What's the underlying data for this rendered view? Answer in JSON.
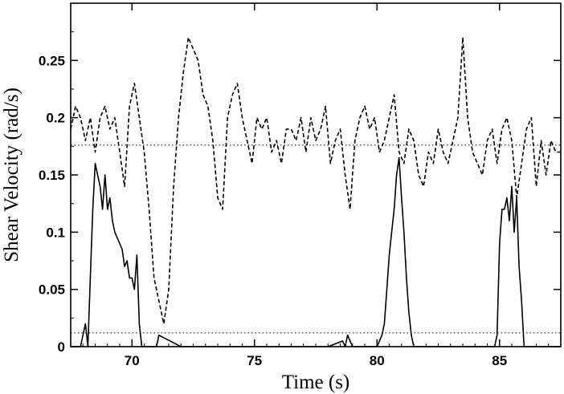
{
  "chart_data": {
    "type": "line",
    "title": "",
    "xlabel": "Time (s)",
    "ylabel": "Shear Velocity (rad/s)",
    "xlim": [
      67.5,
      87.5
    ],
    "ylim": [
      0,
      0.3
    ],
    "x_ticks": [
      70,
      75,
      80,
      85
    ],
    "x_tick_labels": [
      "70",
      "75",
      "80",
      "85"
    ],
    "y_ticks": [
      0,
      0.05,
      0.1,
      0.15,
      0.2,
      0.25
    ],
    "y_tick_labels": [
      "0",
      "0.05",
      "0.1",
      "0.15",
      "0.2",
      "0.25"
    ],
    "grid": false,
    "legend": "none",
    "reference_lines": [
      {
        "style": "dotted",
        "y": 0.176
      },
      {
        "style": "dotted",
        "y": 0.012
      }
    ],
    "series": [
      {
        "style": "dashed",
        "color": "#000000",
        "x": [
          67.5,
          67.7,
          67.9,
          68.1,
          68.3,
          68.5,
          68.7,
          68.9,
          69.1,
          69.3,
          69.5,
          69.7,
          69.9,
          70.1,
          70.3,
          70.5,
          70.7,
          70.9,
          71.1,
          71.3,
          71.5,
          71.7,
          71.9,
          72.1,
          72.3,
          72.5,
          72.7,
          72.9,
          73.1,
          73.3,
          73.5,
          73.7,
          73.9,
          74.1,
          74.3,
          74.5,
          74.7,
          74.9,
          75.1,
          75.3,
          75.5,
          75.7,
          75.9,
          76.1,
          76.3,
          76.5,
          76.7,
          76.9,
          77.1,
          77.3,
          77.5,
          77.7,
          77.9,
          78.1,
          78.3,
          78.5,
          78.7,
          78.9,
          79.1,
          79.3,
          79.5,
          79.7,
          79.9,
          80.1,
          80.3,
          80.5,
          80.7,
          80.9,
          81.1,
          81.3,
          81.5,
          81.7,
          81.9,
          82.1,
          82.3,
          82.5,
          82.7,
          82.9,
          83.1,
          83.3,
          83.5,
          83.7,
          83.9,
          84.1,
          84.3,
          84.5,
          84.7,
          84.9,
          85.1,
          85.3,
          85.5,
          85.7,
          85.9,
          86.1,
          86.3,
          86.5,
          86.7,
          86.9,
          87.1,
          87.3,
          87.5
        ],
        "y": [
          0.19,
          0.21,
          0.2,
          0.18,
          0.2,
          0.17,
          0.2,
          0.21,
          0.19,
          0.2,
          0.17,
          0.14,
          0.21,
          0.23,
          0.2,
          0.17,
          0.12,
          0.06,
          0.04,
          0.02,
          0.05,
          0.14,
          0.2,
          0.24,
          0.27,
          0.26,
          0.25,
          0.22,
          0.21,
          0.18,
          0.13,
          0.12,
          0.2,
          0.22,
          0.23,
          0.2,
          0.18,
          0.16,
          0.2,
          0.19,
          0.2,
          0.17,
          0.18,
          0.16,
          0.19,
          0.19,
          0.18,
          0.2,
          0.17,
          0.2,
          0.18,
          0.19,
          0.21,
          0.16,
          0.18,
          0.19,
          0.15,
          0.12,
          0.18,
          0.2,
          0.21,
          0.19,
          0.2,
          0.17,
          0.18,
          0.2,
          0.22,
          0.17,
          0.16,
          0.19,
          0.18,
          0.15,
          0.14,
          0.17,
          0.16,
          0.19,
          0.17,
          0.16,
          0.18,
          0.2,
          0.27,
          0.2,
          0.17,
          0.16,
          0.15,
          0.18,
          0.19,
          0.16,
          0.19,
          0.2,
          0.18,
          0.13,
          0.16,
          0.19,
          0.2,
          0.14,
          0.18,
          0.15,
          0.18,
          0.17,
          0.17
        ]
      },
      {
        "style": "solid",
        "color": "#000000",
        "x": [
          67.5,
          67.9,
          68.1,
          68.2,
          68.3,
          68.4,
          68.5,
          68.6,
          68.7,
          68.8,
          68.9,
          69.0,
          69.1,
          69.2,
          69.3,
          69.4,
          69.5,
          69.6,
          69.7,
          69.8,
          69.9,
          70.0,
          70.1,
          70.2,
          70.3,
          70.4,
          71.0,
          71.1,
          72.0,
          75.0,
          78.0,
          78.6,
          78.7,
          78.8,
          79.0,
          80.0,
          80.2,
          80.3,
          80.4,
          80.5,
          80.6,
          80.7,
          80.8,
          80.9,
          81.0,
          81.1,
          81.2,
          81.3,
          81.4,
          81.5,
          81.7,
          84.5,
          84.8,
          84.9,
          85.0,
          85.1,
          85.2,
          85.3,
          85.4,
          85.5,
          85.6,
          85.7,
          85.8,
          85.9,
          86.0,
          86.1,
          86.5,
          87.5
        ],
        "y": [
          0,
          0,
          0.02,
          0,
          0.06,
          0.12,
          0.16,
          0.15,
          0.14,
          0.12,
          0.15,
          0.12,
          0.13,
          0.11,
          0.1,
          0.095,
          0.09,
          0.085,
          0.07,
          0.075,
          0.06,
          0.06,
          0.05,
          0.08,
          0.02,
          0,
          0,
          0.01,
          0,
          0,
          0,
          0.005,
          0,
          0.01,
          0,
          0,
          0.01,
          0.02,
          0.05,
          0.08,
          0.1,
          0.12,
          0.15,
          0.165,
          0.13,
          0.1,
          0.06,
          0.03,
          0.01,
          0,
          0,
          0,
          0,
          0.01,
          0.09,
          0.12,
          0.12,
          0.13,
          0.11,
          0.14,
          0.1,
          0.13,
          0.07,
          0.04,
          0,
          0,
          0,
          0
        ]
      }
    ]
  }
}
